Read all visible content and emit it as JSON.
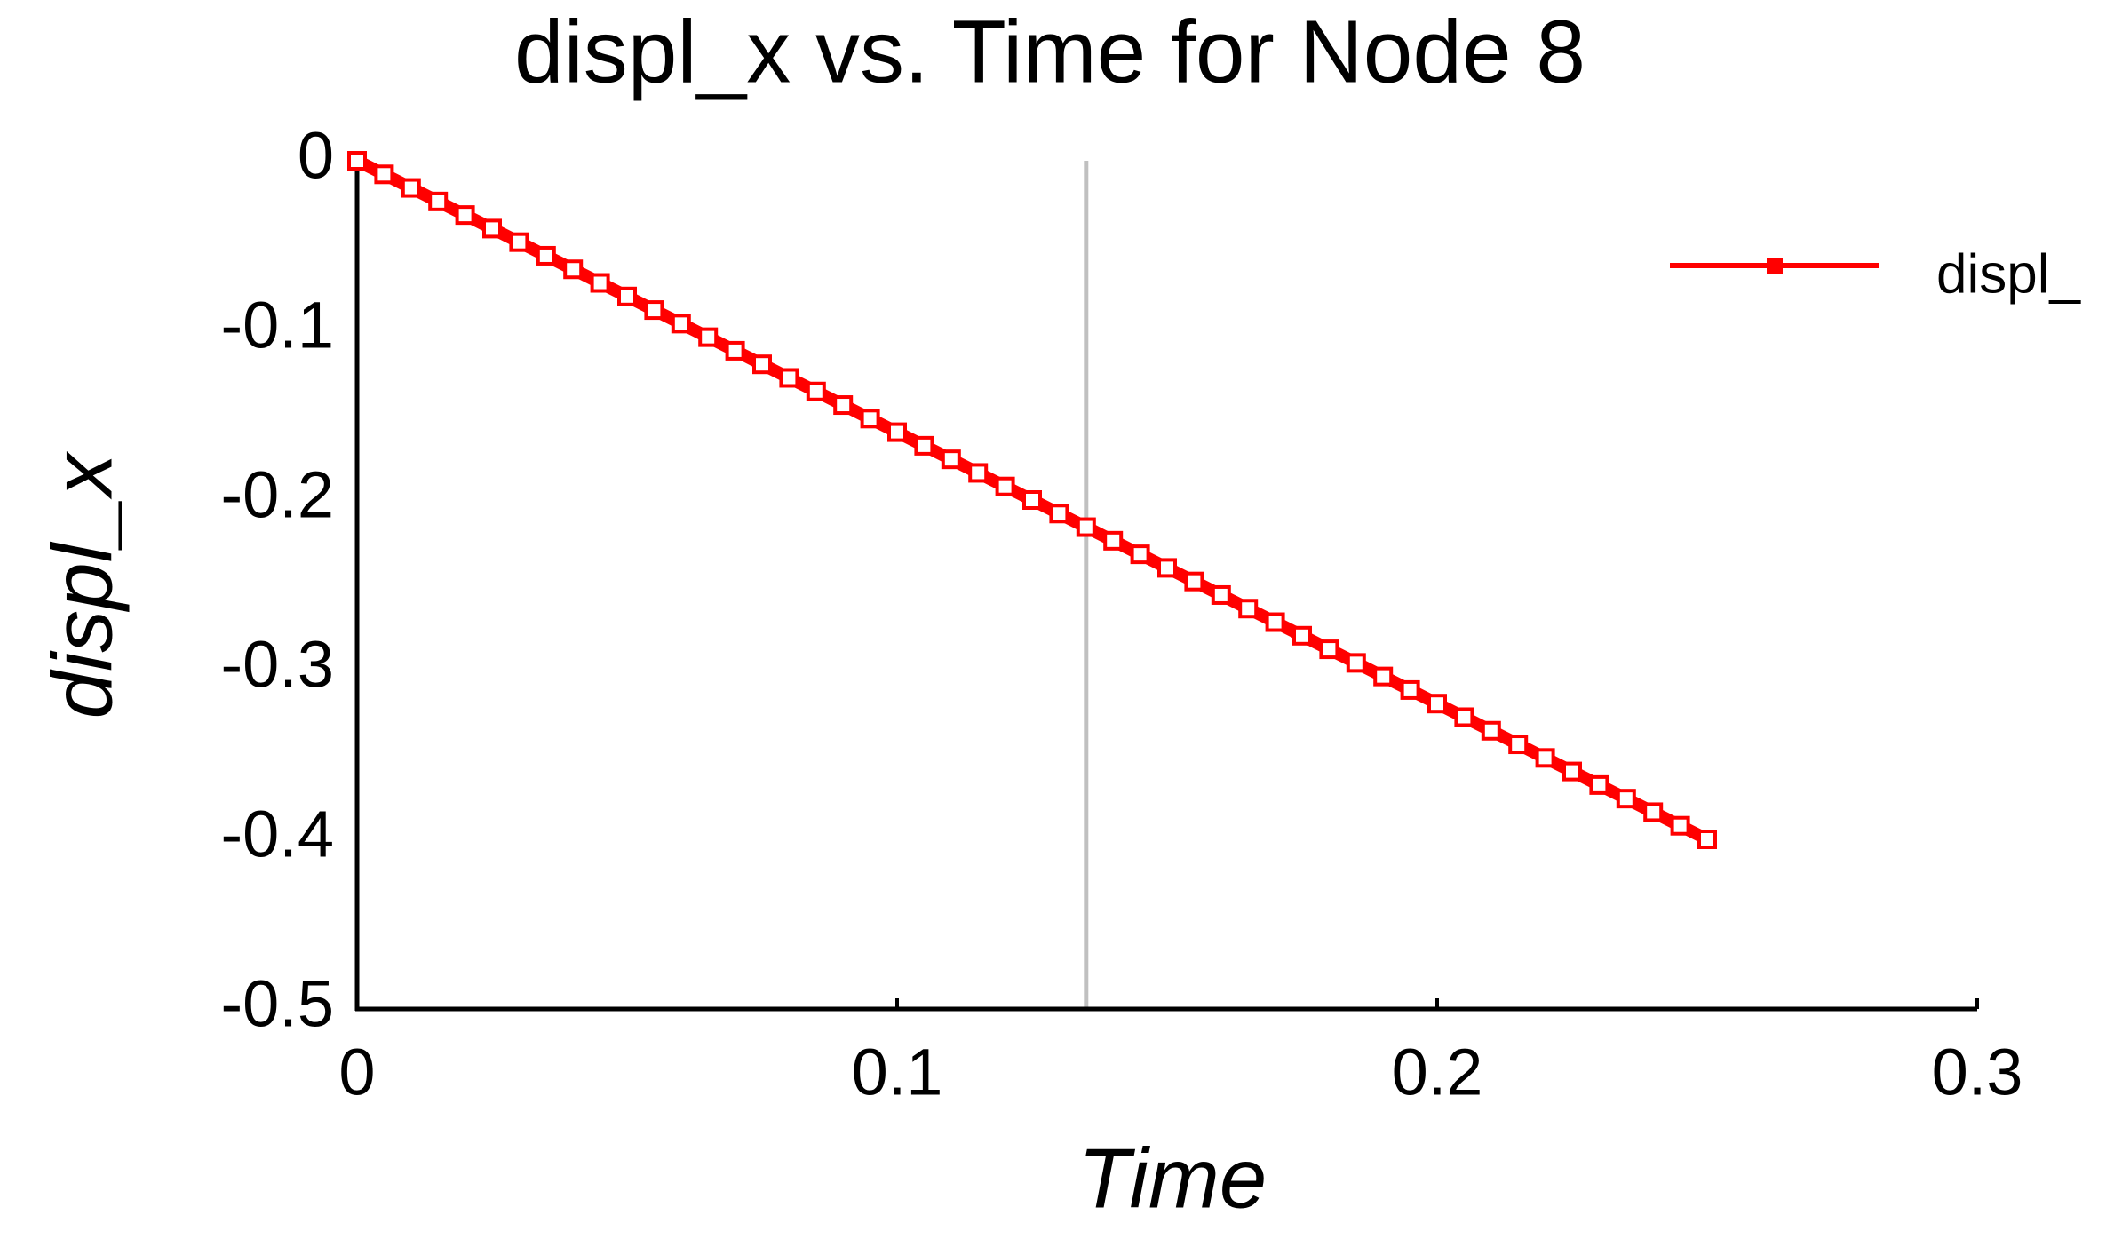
{
  "chart_data": {
    "type": "line",
    "title": "displ_x vs. Time for Node 8",
    "x_label": "Time",
    "y_label": "displ_x",
    "x": [
      0,
      0.005,
      0.01,
      0.015,
      0.02,
      0.025,
      0.03,
      0.035,
      0.04,
      0.045,
      0.05,
      0.055,
      0.06,
      0.065,
      0.07,
      0.075,
      0.08,
      0.085,
      0.09,
      0.095,
      0.1,
      0.105,
      0.11,
      0.115,
      0.12,
      0.125,
      0.13,
      0.135,
      0.14,
      0.145,
      0.15,
      0.155,
      0.16,
      0.165,
      0.17,
      0.175,
      0.18,
      0.185,
      0.19,
      0.195,
      0.2,
      0.205,
      0.21,
      0.215,
      0.22,
      0.225,
      0.23,
      0.235,
      0.24,
      0.245,
      0.25
    ],
    "series": [
      {
        "name": "displ_",
        "color": "#ff0000",
        "values": [
          0,
          -0.008,
          -0.016,
          -0.024,
          -0.032,
          -0.04,
          -0.048,
          -0.056,
          -0.064,
          -0.072,
          -0.08,
          -0.088,
          -0.096,
          -0.104,
          -0.112,
          -0.12,
          -0.128,
          -0.136,
          -0.144,
          -0.152,
          -0.16,
          -0.168,
          -0.176,
          -0.184,
          -0.192,
          -0.2,
          -0.208,
          -0.216,
          -0.224,
          -0.232,
          -0.24,
          -0.248,
          -0.256,
          -0.264,
          -0.272,
          -0.28,
          -0.288,
          -0.296,
          -0.304,
          -0.312,
          -0.32,
          -0.328,
          -0.336,
          -0.344,
          -0.352,
          -0.36,
          -0.368,
          -0.376,
          -0.384,
          -0.392,
          -0.4
        ]
      }
    ],
    "xlim": [
      0,
      0.3
    ],
    "xticks": [
      0,
      0.1,
      0.2,
      0.3
    ],
    "ylim": [
      -0.5,
      0
    ],
    "yticks": [
      0,
      -0.1,
      -0.2,
      -0.3,
      -0.4,
      -0.5
    ],
    "marker_x": 0.135,
    "marker_color": "#c0c0c0",
    "legend": "upper right",
    "grid": false
  }
}
